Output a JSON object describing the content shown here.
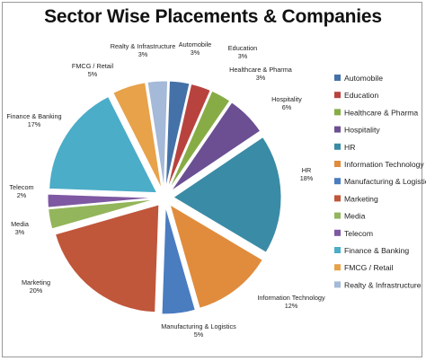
{
  "chart_data": {
    "type": "pie",
    "title": "Sector Wise Placements & Companies",
    "exploded": true,
    "legend_position": "right",
    "slices": [
      {
        "label": "Automobile",
        "value": 3,
        "value_label": "3%",
        "color": "#4472A8"
      },
      {
        "label": "Education",
        "value": 3,
        "value_label": "3%",
        "color": "#B8433E"
      },
      {
        "label": "Healthcare & Pharma",
        "value": 3,
        "value_label": "3%",
        "color": "#87AC46"
      },
      {
        "label": "Hospitality",
        "value": 6,
        "value_label": "6%",
        "color": "#6B4F92"
      },
      {
        "label": "HR",
        "value": 18,
        "value_label": "18%",
        "color": "#3A8BA6"
      },
      {
        "label": "Information Technology",
        "value": 12,
        "value_label": "12%",
        "color": "#E08C3C"
      },
      {
        "label": "Manufacturing & Logistics",
        "value": 5,
        "value_label": "5%",
        "color": "#4A7CC0"
      },
      {
        "label": "Marketing",
        "value": 20,
        "value_label": "20%",
        "color": "#C0563A"
      },
      {
        "label": "Media",
        "value": 3,
        "value_label": "3%",
        "color": "#93B55B"
      },
      {
        "label": "Telecom",
        "value": 2,
        "value_label": "2%",
        "color": "#7E58A2"
      },
      {
        "label": "Finance & Banking",
        "value": 17,
        "value_label": "17%",
        "color": "#4BADC8"
      },
      {
        "label": "FMCG / Retail",
        "value": 5,
        "value_label": "5%",
        "color": "#E7A24A"
      },
      {
        "label": "Realty & Infrastructure",
        "value": 3,
        "value_label": "3%",
        "color": "#A5B9D8"
      }
    ]
  }
}
